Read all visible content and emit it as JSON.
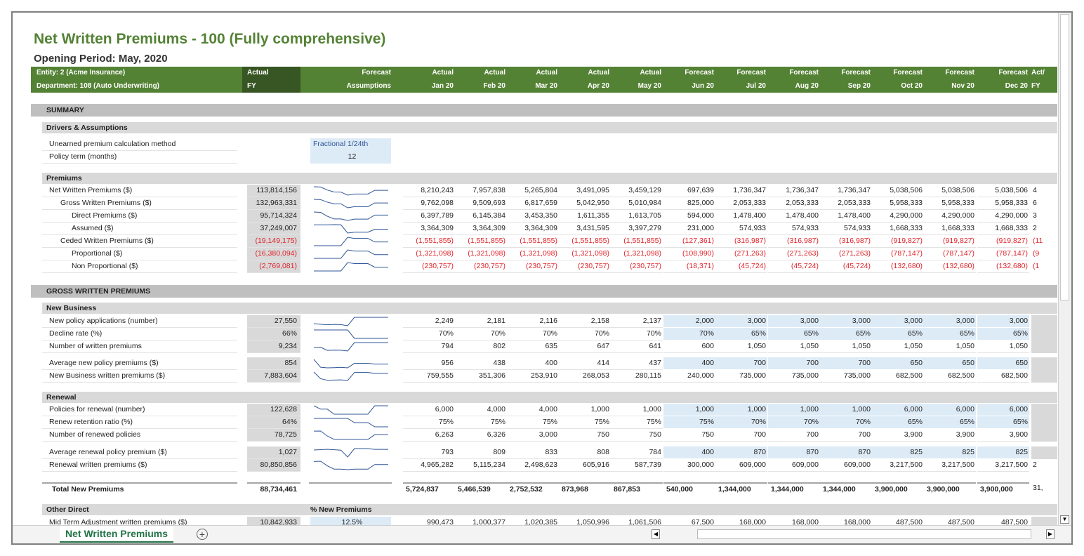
{
  "title": "Net Written Premiums - 100 (Fully comprehensive)",
  "subtitle": "Opening Period: May, 2020",
  "header": {
    "entity": "Entity: 2 (Acme Insurance)",
    "department": "Department: 108 (Auto Underwriting)",
    "columns": [
      {
        "top": "Actual",
        "bottom": "FY"
      },
      {
        "top": "Forecast",
        "bottom": "Assumptions"
      },
      {
        "top": "Actual",
        "bottom": "Jan 20"
      },
      {
        "top": "Actual",
        "bottom": "Feb 20"
      },
      {
        "top": "Actual",
        "bottom": "Mar 20"
      },
      {
        "top": "Actual",
        "bottom": "Apr 20"
      },
      {
        "top": "Actual",
        "bottom": "May 20"
      },
      {
        "top": "Forecast",
        "bottom": "Jun 20"
      },
      {
        "top": "Forecast",
        "bottom": "Jul 20"
      },
      {
        "top": "Forecast",
        "bottom": "Aug 20"
      },
      {
        "top": "Forecast",
        "bottom": "Sep 20"
      },
      {
        "top": "Forecast",
        "bottom": "Oct 20"
      },
      {
        "top": "Forecast",
        "bottom": "Nov 20"
      },
      {
        "top": "Forecast",
        "bottom": "Dec 20"
      },
      {
        "top": "Act/",
        "bottom": "FY"
      }
    ]
  },
  "sections": [
    {
      "title": "SUMMARY",
      "groups": [
        {
          "title": "Drivers & Assumptions",
          "rows": [
            {
              "label": "Unearned premium calculation method",
              "assumption": "Fractional 1/24th"
            },
            {
              "label": "Policy term (months)",
              "assumption": "12"
            }
          ]
        },
        {
          "title": "Premiums",
          "rows": [
            {
              "label": "Net Written Premiums ($)",
              "indent": 0,
              "fy": "113,814,156",
              "months": [
                "8,210,243",
                "7,957,838",
                "5,265,804",
                "3,491,095",
                "3,459,129",
                "697,639",
                "1,736,347",
                "1,736,347",
                "1,736,347",
                "5,038,506",
                "5,038,506",
                "5,038,506"
              ],
              "next": "4"
            },
            {
              "label": "Gross Written Premiums ($)",
              "indent": 1,
              "fy": "132,963,331",
              "months": [
                "9,762,098",
                "9,509,693",
                "6,817,659",
                "5,042,950",
                "5,010,984",
                "825,000",
                "2,053,333",
                "2,053,333",
                "2,053,333",
                "5,958,333",
                "5,958,333",
                "5,958,333"
              ],
              "next": "6"
            },
            {
              "label": "Direct Premiums ($)",
              "indent": 2,
              "fy": "95,714,324",
              "months": [
                "6,397,789",
                "6,145,384",
                "3,453,350",
                "1,611,355",
                "1,613,705",
                "594,000",
                "1,478,400",
                "1,478,400",
                "1,478,400",
                "4,290,000",
                "4,290,000",
                "4,290,000"
              ],
              "next": "3"
            },
            {
              "label": "Assumed ($)",
              "indent": 2,
              "fy": "37,249,007",
              "months": [
                "3,364,309",
                "3,364,309",
                "3,364,309",
                "3,431,595",
                "3,397,279",
                "231,000",
                "574,933",
                "574,933",
                "574,933",
                "1,668,333",
                "1,668,333",
                "1,668,333"
              ],
              "next": "2"
            },
            {
              "label": "Ceded Written Premiums ($)",
              "indent": 1,
              "fy": "(19,149,175)",
              "months": [
                "(1,551,855)",
                "(1,551,855)",
                "(1,551,855)",
                "(1,551,855)",
                "(1,551,855)",
                "(127,361)",
                "(316,987)",
                "(316,987)",
                "(316,987)",
                "(919,827)",
                "(919,827)",
                "(919,827)"
              ],
              "next": "(11"
            },
            {
              "label": "Proportional ($)",
              "indent": 2,
              "fy": "(16,380,094)",
              "months": [
                "(1,321,098)",
                "(1,321,098)",
                "(1,321,098)",
                "(1,321,098)",
                "(1,321,098)",
                "(108,990)",
                "(271,263)",
                "(271,263)",
                "(271,263)",
                "(787,147)",
                "(787,147)",
                "(787,147)"
              ],
              "next": "(9"
            },
            {
              "label": "Non Proportional ($)",
              "indent": 2,
              "fy": "(2,769,081)",
              "months": [
                "(230,757)",
                "(230,757)",
                "(230,757)",
                "(230,757)",
                "(230,757)",
                "(18,371)",
                "(45,724)",
                "(45,724)",
                "(45,724)",
                "(132,680)",
                "(132,680)",
                "(132,680)"
              ],
              "next": "(1"
            }
          ]
        }
      ]
    },
    {
      "title": "GROSS WRITTEN PREMIUMS",
      "groups": [
        {
          "title": "New Business",
          "rows": [
            {
              "label": "New policy applications (number)",
              "fy": "27,550",
              "forecast_input": true,
              "months": [
                "2,249",
                "2,181",
                "2,116",
                "2,158",
                "2,137",
                "2,000",
                "3,000",
                "3,000",
                "3,000",
                "3,000",
                "3,000",
                "3,000"
              ]
            },
            {
              "label": "Decline rate (%)",
              "fy": "66%",
              "forecast_input": true,
              "months": [
                "70%",
                "70%",
                "70%",
                "70%",
                "70%",
                "70%",
                "65%",
                "65%",
                "65%",
                "65%",
                "65%",
                "65%"
              ]
            },
            {
              "label": "Number of written premiums",
              "fy": "9,234",
              "months": [
                "794",
                "802",
                "635",
                "647",
                "641",
                "600",
                "1,050",
                "1,050",
                "1,050",
                "1,050",
                "1,050",
                "1,050"
              ]
            },
            {
              "label": "Average new policy premiums ($)",
              "fy": "854",
              "forecast_input": true,
              "months": [
                "956",
                "438",
                "400",
                "414",
                "437",
                "400",
                "700",
                "700",
                "700",
                "650",
                "650",
                "650"
              ]
            },
            {
              "label": "New Business written premiums ($)",
              "fy": "7,883,604",
              "months": [
                "759,555",
                "351,306",
                "253,910",
                "268,053",
                "280,115",
                "240,000",
                "735,000",
                "735,000",
                "735,000",
                "682,500",
                "682,500",
                "682,500"
              ]
            }
          ]
        },
        {
          "title": "Renewal",
          "rows": [
            {
              "label": "Policies for renewal (number)",
              "fy": "122,628",
              "forecast_input": true,
              "months": [
                "6,000",
                "4,000",
                "4,000",
                "1,000",
                "1,000",
                "1,000",
                "1,000",
                "1,000",
                "1,000",
                "6,000",
                "6,000",
                "6,000"
              ]
            },
            {
              "label": "Renew retention ratio (%)",
              "fy": "64%",
              "forecast_input": true,
              "months": [
                "75%",
                "75%",
                "75%",
                "75%",
                "75%",
                "75%",
                "70%",
                "70%",
                "70%",
                "65%",
                "65%",
                "65%"
              ]
            },
            {
              "label": "Number of renewed policies",
              "fy": "78,725",
              "months": [
                "6,263",
                "6,326",
                "3,000",
                "750",
                "750",
                "750",
                "700",
                "700",
                "700",
                "3,900",
                "3,900",
                "3,900"
              ]
            },
            {
              "label": "Average renewal policy premium ($)",
              "fy": "1,027",
              "forecast_input": true,
              "months": [
                "793",
                "809",
                "833",
                "808",
                "784",
                "400",
                "870",
                "870",
                "870",
                "825",
                "825",
                "825"
              ]
            },
            {
              "label": "Renewal written premiums ($)",
              "fy": "80,850,856",
              "months": [
                "4,965,282",
                "5,115,234",
                "2,498,623",
                "605,916",
                "587,739",
                "300,000",
                "609,000",
                "609,000",
                "609,000",
                "3,217,500",
                "3,217,500",
                "3,217,500"
              ],
              "next": "2"
            }
          ]
        }
      ],
      "total": {
        "label": "Total New Premiums",
        "fy": "88,734,461",
        "months": [
          "5,724,837",
          "5,466,539",
          "2,752,532",
          "873,968",
          "867,853",
          "540,000",
          "1,344,000",
          "1,344,000",
          "1,344,000",
          "3,900,000",
          "3,900,000",
          "3,900,000"
        ],
        "next": "31,"
      },
      "after": {
        "title": "Other Direct",
        "assumption_header": "% New Premiums",
        "rows": [
          {
            "label": "Mid Term Adjustment written premiums ($)",
            "fy": "10,842,933",
            "assumption": "12.5%",
            "months": [
              "990,473",
              "1,000,377",
              "1,020,385",
              "1,050,996",
              "1,061,506",
              "67,500",
              "168,000",
              "168,000",
              "168,000",
              "487,500",
              "487,500",
              "487,500"
            ]
          }
        ]
      }
    }
  ],
  "sheet_tabs": [
    "Net Written Premiums"
  ]
}
